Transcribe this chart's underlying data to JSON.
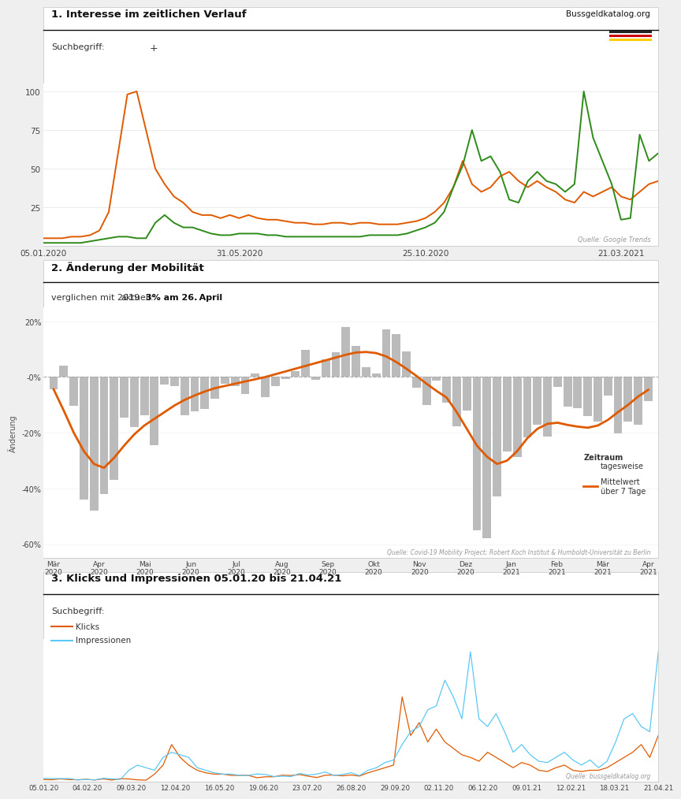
{
  "title1": "1. Interesse im zeitlichen Verlauf",
  "title2": "2. Änderung der Mobilität",
  "title3": "3. Klicks und Impressionen 05.01.20 bis 21.04.21",
  "brand": "Bussgeldkatalog.org",
  "source1": "Quelle: Google Trends",
  "source2": "Quelle: Covid-19 Mobility Project; Robert Koch Institut & Humboldt-Universität zu Berlin",
  "source3": "Quelle: bussgeldkatalog.org",
  "subtitle2": "verglichen mit 2019",
  "subtitle2b": "3% am 26. April",
  "color_orange": "#E05A00",
  "color_green": "#2E8B1A",
  "color_blue": "#5BC8F5",
  "color_gray_bar": "#BBBBBB",
  "bg_color": "#EFEFEF",
  "panel_bg": "#FFFFFF",
  "plot1_xticks": [
    "05.01.2020",
    "31.05.2020",
    "25.10.2020",
    "21.03.2021"
  ],
  "plot2_xticks": [
    "Mär\n2020",
    "Apr\n2020",
    "Mai\n2020",
    "Jun\n2020",
    "Jul\n2020",
    "Aug\n2020",
    "Sep\n2020",
    "Okt\n2020",
    "Nov\n2020",
    "Dez\n2020",
    "Jan\n2021",
    "Feb\n2021",
    "Mär\n2021",
    "Apr\n2021"
  ],
  "plot3_xticks": [
    "05.01.20",
    "04.02.20",
    "09.03.20",
    "12.04.20",
    "16.05.20",
    "19.06.20",
    "23.07.20",
    "26.08.20",
    "29.09.20",
    "02.11.20",
    "06.12.20",
    "09.01.21",
    "12.02.21",
    "18.03.21",
    "21.04.21"
  ]
}
